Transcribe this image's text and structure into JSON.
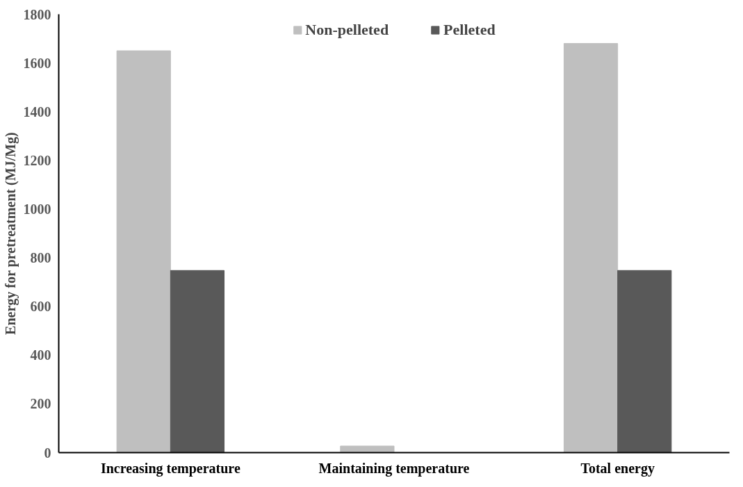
{
  "chart_data": {
    "type": "bar",
    "ylabel": "Energy for pretreatment (MJ/Mg)",
    "categories": [
      "Increasing temperature",
      "Maintaining temperature",
      "Total energy"
    ],
    "series": [
      {
        "name": "Non-pelleted",
        "color": "#bfbfbf",
        "values": [
          1650,
          27,
          1680
        ]
      },
      {
        "name": "Pelleted",
        "color": "#595959",
        "values": [
          748,
          0,
          748
        ]
      }
    ],
    "ylim": [
      0,
      1800
    ],
    "yticks": [
      0,
      200,
      400,
      600,
      800,
      1000,
      1200,
      1400,
      1600,
      1800
    ],
    "grid": false,
    "legend": "top"
  }
}
